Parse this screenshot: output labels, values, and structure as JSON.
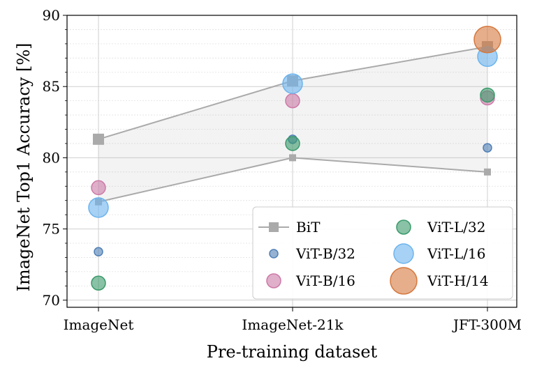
{
  "chart_data": {
    "type": "scatter",
    "xlabel": "Pre-training dataset",
    "ylabel": "ImageNet Top1 Accuracy [%]",
    "categories": [
      "ImageNet",
      "ImageNet-21k",
      "JFT-300M"
    ],
    "ylim": [
      69.5,
      90
    ],
    "yticks": [
      70,
      75,
      80,
      85,
      90
    ],
    "grid": true,
    "legend_position": "bottom-right",
    "bit_band": {
      "name": "BiT",
      "color": "#aaaaaa",
      "upper": [
        81.3,
        85.4,
        87.8
      ],
      "lower": [
        76.9,
        80.0,
        79.0
      ]
    },
    "series": [
      {
        "name": "ViT-B/32",
        "color": "#4f7fb5",
        "size": 1,
        "values": [
          73.4,
          81.3,
          80.7
        ]
      },
      {
        "name": "ViT-B/16",
        "color": "#cc79a7",
        "size": 2,
        "values": [
          77.9,
          84.0,
          84.2
        ]
      },
      {
        "name": "ViT-L/32",
        "color": "#3a9a6a",
        "size": 2,
        "values": [
          71.2,
          81.0,
          84.4
        ]
      },
      {
        "name": "ViT-L/16",
        "color": "#6cb4ee",
        "size": 3,
        "values": [
          76.5,
          85.2,
          87.1
        ]
      },
      {
        "name": "ViT-H/14",
        "color": "#d5783e",
        "size": 4,
        "values": [
          null,
          null,
          88.3
        ]
      }
    ]
  }
}
